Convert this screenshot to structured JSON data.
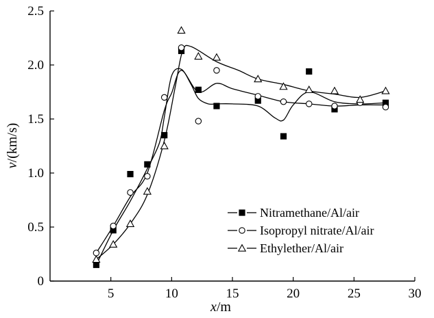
{
  "chart_data": {
    "type": "scatter",
    "title": "",
    "xlabel": "",
    "ylabel": "",
    "xlabel_var": "x",
    "xlabel_unit": "/m",
    "ylabel_var": "v",
    "ylabel_unit": "/(km/s)",
    "xlim": [
      0,
      30
    ],
    "ylim": [
      0,
      2.5
    ],
    "xticks": [
      5,
      10,
      15,
      20,
      25,
      30
    ],
    "xtick_labels": [
      "5",
      "10",
      "15",
      "20",
      "25",
      "30"
    ],
    "yticks": [
      0,
      0.5,
      1.0,
      1.5,
      2.0,
      2.5
    ],
    "ytick_labels": [
      "0",
      "0.5",
      "1.0",
      "1.5",
      "2.0",
      "2.5"
    ],
    "grid": false,
    "legend_position": "bottom-right",
    "series": [
      {
        "name": "Nitramethane/Al/air",
        "marker": "filled-square",
        "x": [
          3.8,
          5.2,
          6.6,
          8.0,
          9.4,
          10.8,
          12.2,
          13.7,
          17.1,
          19.2,
          21.3,
          23.4,
          27.6
        ],
        "y": [
          0.15,
          0.47,
          0.99,
          1.08,
          1.35,
          2.13,
          1.77,
          1.62,
          1.67,
          1.34,
          1.94,
          1.59,
          1.65
        ],
        "curve_x": [
          3.8,
          5.2,
          6.6,
          8.0,
          9.0,
          9.4,
          10.0,
          10.8,
          11.6,
          12.2,
          13.0,
          13.7,
          15.0,
          17.1,
          18.5,
          19.2,
          20.0,
          21.3,
          23.4,
          25.5,
          27.6
        ],
        "curve_y": [
          0.15,
          0.47,
          0.74,
          1.04,
          1.28,
          1.52,
          1.9,
          1.96,
          1.82,
          1.69,
          1.64,
          1.64,
          1.64,
          1.62,
          1.51,
          1.49,
          1.63,
          1.75,
          1.66,
          1.64,
          1.65
        ]
      },
      {
        "name": "Isopropyl nitrate/Al/air",
        "marker": "open-circle",
        "x": [
          3.8,
          5.2,
          6.6,
          8.0,
          9.4,
          10.8,
          12.2,
          13.7,
          17.1,
          19.2,
          21.3,
          23.4,
          25.5,
          27.6
        ],
        "y": [
          0.26,
          0.51,
          0.82,
          0.97,
          1.7,
          2.16,
          1.48,
          1.95,
          1.71,
          1.66,
          1.64,
          1.62,
          1.65,
          1.61
        ],
        "curve_x": [
          3.8,
          5.2,
          6.6,
          8.0,
          9.4,
          10.0,
          10.8,
          12.2,
          13.7,
          15.0,
          17.1,
          19.2,
          21.3,
          23.4,
          25.5,
          27.6
        ],
        "curve_y": [
          0.26,
          0.51,
          0.78,
          1.0,
          1.58,
          1.74,
          1.95,
          1.75,
          1.83,
          1.78,
          1.72,
          1.66,
          1.64,
          1.62,
          1.63,
          1.63
        ]
      },
      {
        "name": "Ethylether/Al/air",
        "marker": "open-triangle",
        "x": [
          3.8,
          5.2,
          6.6,
          8.0,
          9.4,
          10.8,
          12.2,
          13.7,
          17.1,
          19.2,
          21.3,
          23.4,
          25.5,
          27.6
        ],
        "y": [
          0.2,
          0.34,
          0.53,
          0.83,
          1.25,
          2.32,
          2.08,
          2.07,
          1.87,
          1.8,
          1.77,
          1.76,
          1.68,
          1.76
        ],
        "curve_x": [
          3.8,
          5.2,
          6.6,
          8.0,
          9.4,
          10.3,
          10.9,
          11.6,
          13.7,
          15.5,
          17.1,
          19.2,
          21.3,
          23.4,
          25.5,
          27.6
        ],
        "curve_y": [
          0.2,
          0.34,
          0.53,
          0.8,
          1.3,
          1.8,
          2.13,
          2.17,
          2.03,
          1.95,
          1.87,
          1.82,
          1.76,
          1.73,
          1.7,
          1.76
        ]
      }
    ]
  }
}
